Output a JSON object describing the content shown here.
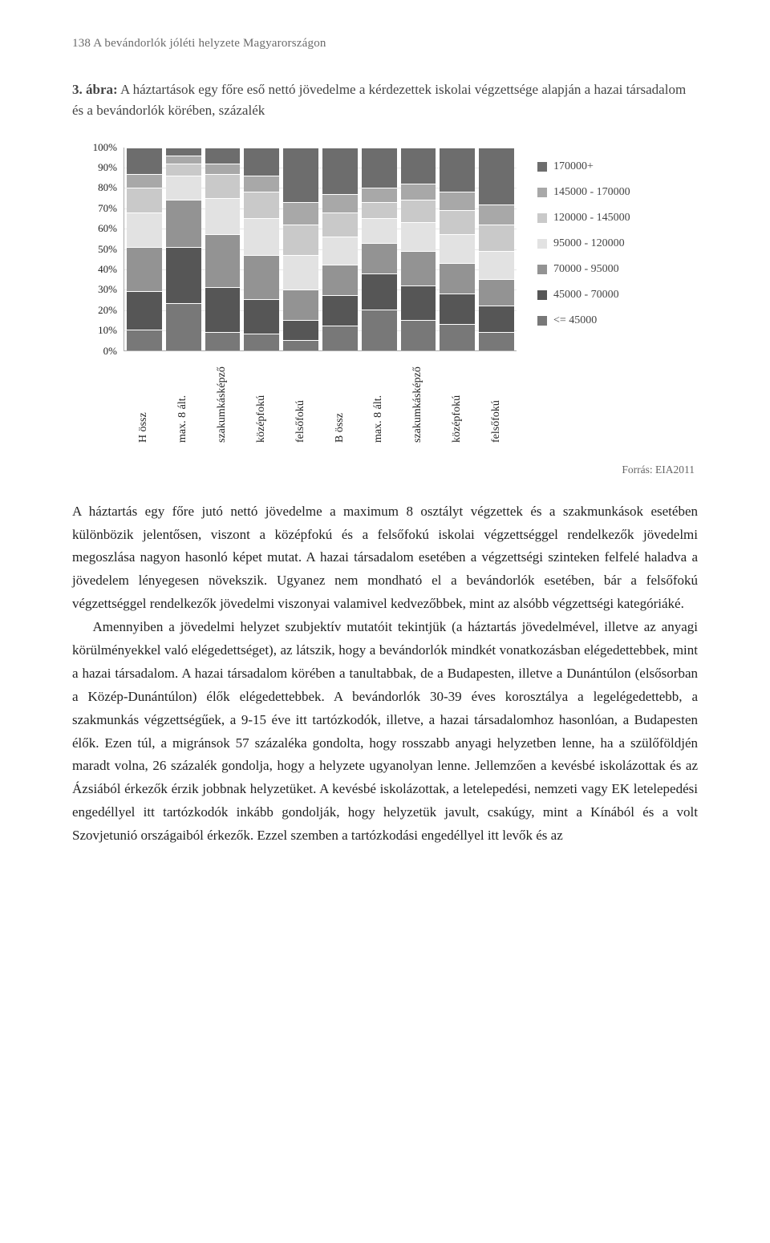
{
  "page_header": "138   A bevándorlók jóléti helyzete Magyarországon",
  "figure": {
    "label": "3. ábra:",
    "caption_rest": " A háztartások egy főre eső nettó jövedelme a kérdezettek iskolai végzettsége alapján a hazai társadalom és a bevándorlók körében, százalék"
  },
  "chart": {
    "type": "stacked-bar-100",
    "ylim": [
      0,
      100
    ],
    "ytick_step": 10,
    "axis_color": "#aaaaaa",
    "grid_color": "#e8e8e8",
    "background_color": "#ffffff",
    "label_fontsize": 14,
    "categories": [
      "H össz",
      "max. 8 ált.",
      "szakumkásképző",
      "középfokú",
      "felsőfokú",
      "B össz",
      "max. 8 ált.",
      "szakumkásképző",
      "középfokú",
      "felsőfokú"
    ],
    "series_order_top_to_bottom": [
      "170000+",
      "145000 - 170000",
      "120000 - 145000",
      "95000 - 120000",
      "70000 - 95000",
      "45000 - 70000",
      "<= 45000"
    ],
    "series_colors": {
      "170000+": "#6d6d6d",
      "145000 - 170000": "#a8a8a8",
      "120000 - 145000": "#c9c9c9",
      "95000 - 120000": "#e2e2e2",
      "70000 - 95000": "#939393",
      "45000 - 70000": "#565656",
      "<= 45000": "#787878"
    },
    "stacks": [
      {
        "170000+": 13,
        "145000 - 170000": 7,
        "120000 - 145000": 12,
        "95000 - 120000": 17,
        "70000 - 95000": 22,
        "45000 - 70000": 19,
        "<= 45000": 10
      },
      {
        "170000+": 4,
        "145000 - 170000": 4,
        "120000 - 145000": 6,
        "95000 - 120000": 12,
        "70000 - 95000": 23,
        "45000 - 70000": 28,
        "<= 45000": 23
      },
      {
        "170000+": 8,
        "145000 - 170000": 5,
        "120000 - 145000": 12,
        "95000 - 120000": 18,
        "70000 - 95000": 26,
        "45000 - 70000": 22,
        "<= 45000": 9
      },
      {
        "170000+": 14,
        "145000 - 170000": 8,
        "120000 - 145000": 13,
        "95000 - 120000": 18,
        "70000 - 95000": 22,
        "45000 - 70000": 17,
        "<= 45000": 8
      },
      {
        "170000+": 27,
        "145000 - 170000": 11,
        "120000 - 145000": 15,
        "95000 - 120000": 17,
        "70000 - 95000": 15,
        "45000 - 70000": 10,
        "<= 45000": 5
      },
      {
        "170000+": 23,
        "145000 - 170000": 9,
        "120000 - 145000": 12,
        "95000 - 120000": 14,
        "70000 - 95000": 15,
        "45000 - 70000": 15,
        "<= 45000": 12
      },
      {
        "170000+": 20,
        "145000 - 170000": 7,
        "120000 - 145000": 8,
        "95000 - 120000": 12,
        "70000 - 95000": 15,
        "45000 - 70000": 18,
        "<= 45000": 20
      },
      {
        "170000+": 18,
        "145000 - 170000": 8,
        "120000 - 145000": 11,
        "95000 - 120000": 14,
        "70000 - 95000": 17,
        "45000 - 70000": 17,
        "<= 45000": 15
      },
      {
        "170000+": 22,
        "145000 - 170000": 9,
        "120000 - 145000": 12,
        "95000 - 120000": 14,
        "70000 - 95000": 15,
        "45000 - 70000": 15,
        "<= 45000": 13
      },
      {
        "170000+": 28,
        "145000 - 170000": 10,
        "120000 - 145000": 13,
        "95000 - 120000": 14,
        "70000 - 95000": 13,
        "45000 - 70000": 13,
        "<= 45000": 9
      }
    ],
    "legend_items": [
      {
        "swatch": "#6d6d6d",
        "label": "170000+"
      },
      {
        "swatch": "#a8a8a8",
        "label": "145000 - 170000"
      },
      {
        "swatch": "#c9c9c9",
        "label": "120000 - 145000"
      },
      {
        "swatch": "#e2e2e2",
        "label": "95000 - 120000"
      },
      {
        "swatch": "#939393",
        "label": "70000 - 95000"
      },
      {
        "swatch": "#565656",
        "label": "45000 - 70000"
      },
      {
        "swatch": "#787878",
        "label": "<= 45000"
      }
    ]
  },
  "source": "Forrás: EIA2011",
  "body": {
    "p1": "A háztartás egy főre jutó nettó jövedelme a maximum 8 osztályt végzettek és a szakmunkások esetében különbözik jelentősen, viszont a középfokú és a felsőfokú iskolai végzettséggel rendelkezők jövedelmi megoszlása nagyon hasonló képet mutat. A hazai társadalom esetében a végzettségi szinteken felfelé haladva a jövedelem lényegesen növekszik. Ugyanez nem mondható el a bevándorlók esetében, bár a felsőfokú végzettséggel rendelkezők jövedelmi viszonyai valamivel kedvezőbbek, mint az alsóbb végzettségi kategóriáké.",
    "p2": "Amennyiben a jövedelmi helyzet szubjektív mutatóit tekintjük (a háztartás jövedelmével, illetve az anyagi körülményekkel való elégedettséget), az látszik, hogy a bevándorlók mindkét vonatkozásban elégedettebbek, mint a hazai társadalom. A hazai társadalom körében a tanultabbak, de a Budapesten, illetve a Dunántúlon (elsősorban a Közép-Dunántúlon) élők elégedettebbek. A bevándorlók 30-39 éves korosztálya a legelégedettebb, a szakmunkás végzettségűek, a 9-15 éve itt tartózkodók, illetve, a hazai társadalomhoz hasonlóan, a Budapesten élők. Ezen túl, a migránsok 57 százaléka gondolta, hogy rosszabb anyagi helyzetben lenne, ha a szülőföldjén maradt volna, 26 százalék gondolja, hogy a helyzete ugyanolyan lenne. Jellemzően a kevésbé iskolázottak és az Ázsiából érkezők érzik jobbnak helyzetüket. A kevésbé iskolázottak, a letelepedési, nemzeti vagy EK letelepedési engedéllyel itt tartózkodók inkább gondolják, hogy helyzetük javult, csakúgy, mint a Kínából és a volt Szovjetunió országaiból érkezők. Ezzel szemben a tartózkodási engedéllyel itt levők és az"
  }
}
